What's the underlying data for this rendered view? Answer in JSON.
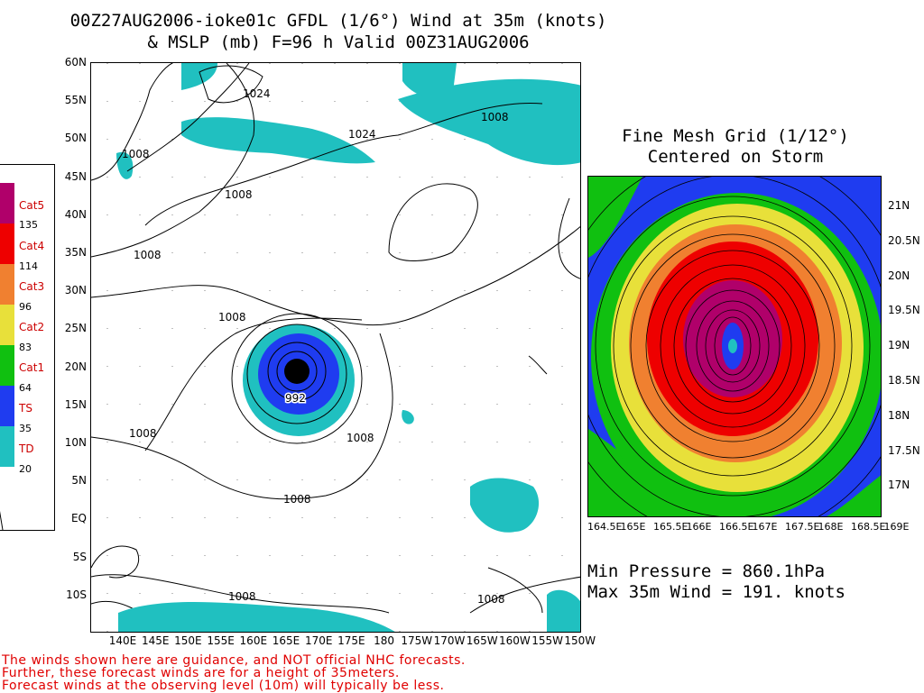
{
  "title": {
    "line1": "00Z27AUG2006-ioke01c GFDL (1/6°) Wind at 35m (knots)",
    "line2": "& MSLP (mb) F=96 h Valid 00Z31AUG2006"
  },
  "main_map": {
    "lat_labels": [
      "60N",
      "55N",
      "50N",
      "45N",
      "40N",
      "35N",
      "30N",
      "25N",
      "20N",
      "15N",
      "10N",
      "5N",
      "EQ",
      "5S",
      "10S"
    ],
    "lon_labels": [
      "140E",
      "145E",
      "150E",
      "155E",
      "160E",
      "165E",
      "170E",
      "175E",
      "180",
      "175W",
      "170W",
      "165W",
      "160W",
      "155W",
      "150W"
    ],
    "isobar_labels": [
      "1024",
      "1024",
      "1008",
      "1008",
      "1008",
      "1008",
      "1008",
      "992",
      "1008",
      "1008",
      "1008",
      "1008",
      "1008"
    ]
  },
  "legend": {
    "categories": [
      {
        "label": "Cat5",
        "value": "135",
        "color": "#b0006a"
      },
      {
        "label": "Cat4",
        "value": "114",
        "color": "#ee0000"
      },
      {
        "label": "Cat3",
        "value": "96",
        "color": "#f08030"
      },
      {
        "label": "Cat2",
        "value": "83",
        "color": "#e8e03a"
      },
      {
        "label": "Cat1",
        "value": "64",
        "color": "#10c010"
      },
      {
        "label": "TS",
        "value": "35",
        "color": "#1f3cf0"
      },
      {
        "label": "TD",
        "value": "20",
        "color": "#20c0c0"
      }
    ]
  },
  "fine_mesh": {
    "title1": "Fine Mesh Grid (1/12°)",
    "title2": "Centered on Storm",
    "lat_labels": [
      "21N",
      "20.5N",
      "20N",
      "19.5N",
      "19N",
      "18.5N",
      "18N",
      "17.5N",
      "17N"
    ],
    "lon_labels": [
      "164.5E",
      "165E",
      "165.5E",
      "166E",
      "166.5E",
      "167E",
      "167.5E",
      "168E",
      "168.5E",
      "169E"
    ]
  },
  "stats": {
    "min_pressure": "Min Pressure = 860.1hPa",
    "max_wind": "Max 35m Wind = 191. knots"
  },
  "disclaimer": {
    "line1": "The winds shown here are guidance, and NOT official NHC forecasts.",
    "line2": "Further, these forecast winds are for a height of 35meters.",
    "line3": "Forecast winds at the observing level (10m) will typically be less."
  }
}
